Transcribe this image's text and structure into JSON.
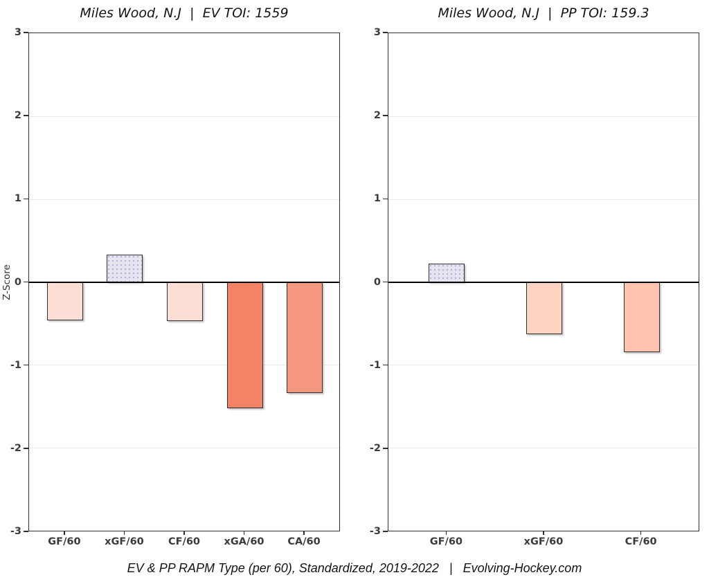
{
  "caption": "EV & PP RAPM Type (per 60), Standardized, 2019-2022   |   Evolving-Hockey.com",
  "chart_data": [
    {
      "type": "bar",
      "title": "Miles Wood, N.J  |  EV TOI: 1559",
      "ylabel": "Z-Score",
      "categories": [
        "GF/60",
        "xGF/60",
        "CF/60",
        "xGA/60",
        "CA/60"
      ],
      "values": [
        -0.46,
        0.33,
        -0.47,
        -1.52,
        -1.34
      ],
      "bar_colors": [
        "#fcded4",
        "#e7e4f1",
        "#fcded4",
        "#f28366",
        "#f69780"
      ],
      "ylim": [
        -3,
        3
      ],
      "yticks": [
        3,
        2,
        1,
        0,
        -1,
        -2,
        -3
      ],
      "grid": true,
      "legend": "none"
    },
    {
      "type": "bar",
      "title": "Miles Wood, N.J  |  PP TOI: 159.3",
      "ylabel": "",
      "categories": [
        "GF/60",
        "xGF/60",
        "CF/60"
      ],
      "values": [
        0.22,
        -0.63,
        -0.85
      ],
      "bar_colors": [
        "#e7e4f1",
        "#fdd3c1",
        "#ffc3b0"
      ],
      "ylim": [
        -3,
        3
      ],
      "yticks": [
        3,
        2,
        1,
        0,
        -1,
        -2,
        -3
      ],
      "grid": true,
      "legend": "none"
    }
  ]
}
